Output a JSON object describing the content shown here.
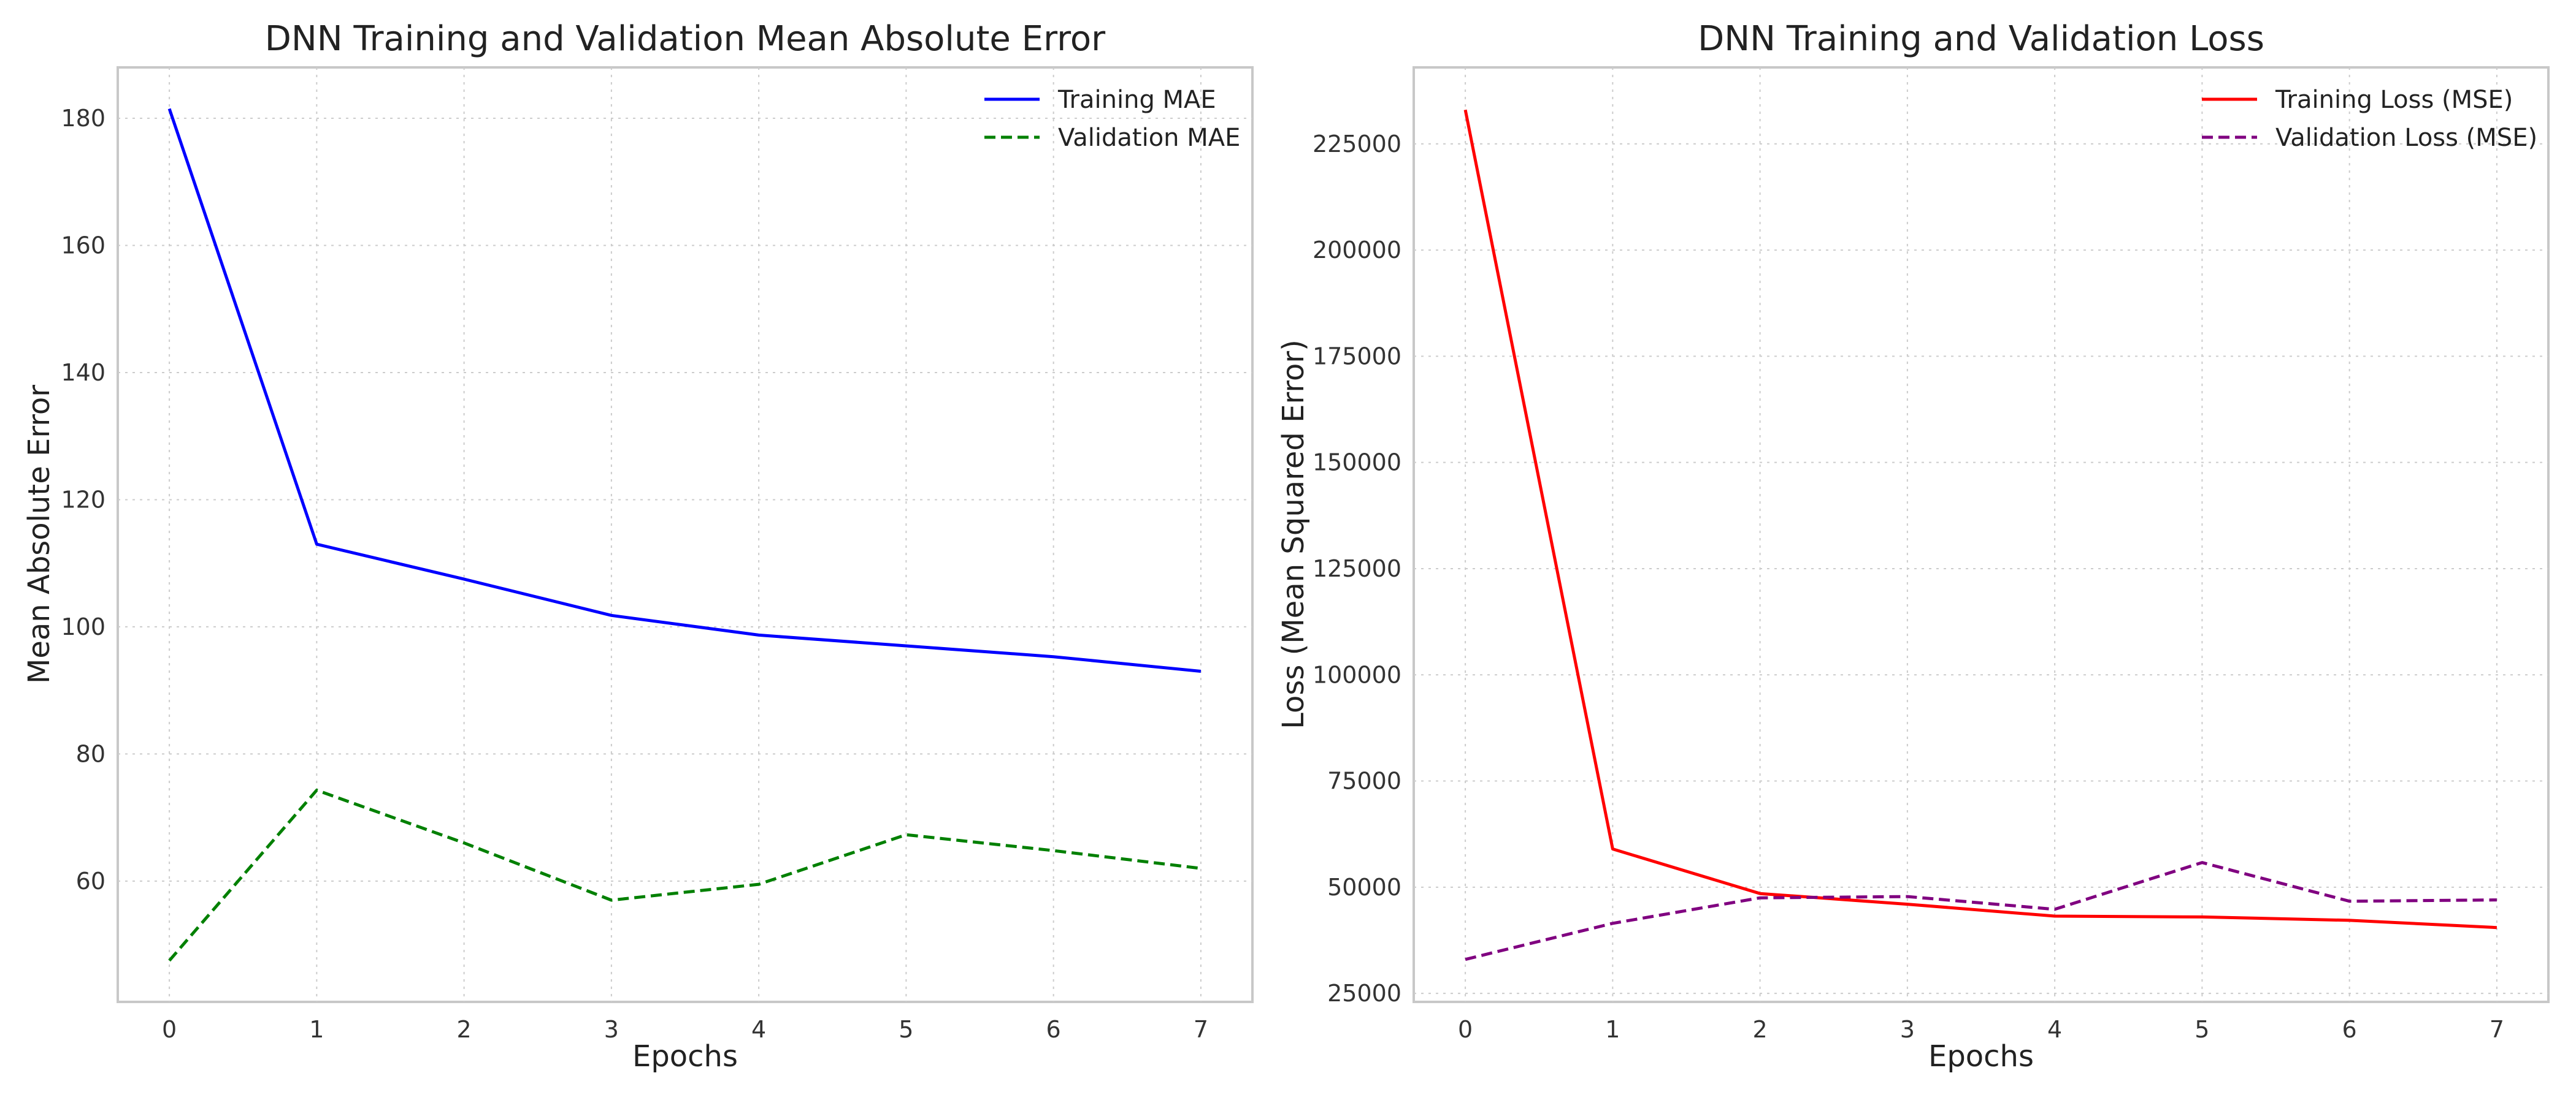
{
  "chart_data": [
    {
      "type": "line",
      "title": "DNN Training and Validation Mean Absolute Error",
      "xlabel": "Epochs",
      "ylabel": "Mean Absolute Error",
      "xlim": [
        -0.35,
        7.35
      ],
      "ylim": [
        41,
        188
      ],
      "x_ticks": [
        0,
        1,
        2,
        3,
        4,
        5,
        6,
        7
      ],
      "y_ticks": [
        60,
        80,
        100,
        120,
        140,
        160,
        180
      ],
      "grid": true,
      "legend_position": "top-right",
      "x": [
        0,
        1,
        2,
        3,
        4,
        5,
        6,
        7
      ],
      "series": [
        {
          "name": "Training MAE",
          "color": "#0000ff",
          "style": "solid",
          "values": [
            181.5,
            113.0,
            107.5,
            101.8,
            98.7,
            97.0,
            95.3,
            93.0
          ]
        },
        {
          "name": "Validation MAE",
          "color": "#008000",
          "style": "dashed",
          "values": [
            47.5,
            74.3,
            66.0,
            57.0,
            59.5,
            67.3,
            64.8,
            62.0
          ]
        }
      ]
    },
    {
      "type": "line",
      "title": "DNN Training and Validation Loss",
      "xlabel": "Epochs",
      "ylabel": "Loss (Mean Squared Error)",
      "xlim": [
        -0.35,
        7.35
      ],
      "ylim": [
        23000,
        243000
      ],
      "x_ticks": [
        0,
        1,
        2,
        3,
        4,
        5,
        6,
        7
      ],
      "y_ticks": [
        25000,
        50000,
        75000,
        100000,
        125000,
        150000,
        175000,
        200000,
        225000
      ],
      "grid": true,
      "legend_position": "top-right",
      "x": [
        0,
        1,
        2,
        3,
        4,
        5,
        6,
        7
      ],
      "series": [
        {
          "name": "Training Loss (MSE)",
          "color": "#ff0000",
          "style": "solid",
          "values": [
            233000,
            59000,
            48500,
            46000,
            43200,
            43000,
            42200,
            40500
          ]
        },
        {
          "name": "Validation Loss (MSE)",
          "color": "#800080",
          "style": "dashed",
          "values": [
            33000,
            41500,
            47500,
            47800,
            44800,
            55800,
            46700,
            47000
          ]
        }
      ]
    }
  ]
}
